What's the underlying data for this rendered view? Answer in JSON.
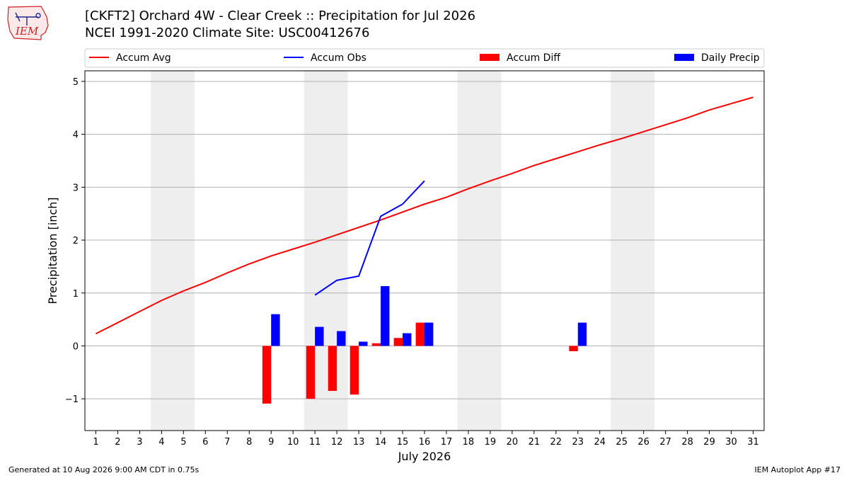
{
  "header": {
    "title": "[CKFT2] Orchard 4W - Clear Creek :: Precipitation for Jul 2026",
    "subtitle": "NCEI 1991-2020 Climate Site: USC00412676",
    "logo_text": "IEM"
  },
  "footer": {
    "generated": "Generated at 10 Aug 2026 9:00 AM CDT in 0.75s",
    "app": "IEM Autoplot App #17"
  },
  "colors": {
    "accum_avg": "#ff0000",
    "accum_obs": "#0000ff",
    "accum_diff": "#ff0000",
    "daily_precip": "#0000ff",
    "weekend_band": "#eeeeee",
    "grid": "#b0b0b0"
  },
  "chart_data": {
    "type": "bar",
    "title": "[CKFT2] Orchard 4W - Clear Creek :: Precipitation for Jul 2026",
    "xlabel": "July 2026",
    "ylabel": "Precipitation [inch]",
    "x": [
      1,
      2,
      3,
      4,
      5,
      6,
      7,
      8,
      9,
      10,
      11,
      12,
      13,
      14,
      15,
      16,
      17,
      18,
      19,
      20,
      21,
      22,
      23,
      24,
      25,
      26,
      27,
      28,
      29,
      30,
      31
    ],
    "xlim": [
      0.5,
      31.5
    ],
    "ylim": [
      -1.6,
      5.2
    ],
    "yticks": [
      -1,
      0,
      1,
      2,
      3,
      4,
      5
    ],
    "ytick_labels": [
      "−1",
      "0",
      "1",
      "2",
      "3",
      "4",
      "5"
    ],
    "grid": "horizontal",
    "legend": "top, horizontal",
    "weekend_bands": [
      [
        3.5,
        5.5
      ],
      [
        10.5,
        12.5
      ],
      [
        17.5,
        19.5
      ],
      [
        24.5,
        26.5
      ]
    ],
    "legend_entries": [
      "Accum Avg",
      "Accum Obs",
      "Accum Diff",
      "Daily Precip"
    ],
    "series": [
      {
        "name": "Accum Avg",
        "type": "line",
        "x": [
          1,
          2,
          3,
          4,
          5,
          6,
          7,
          8,
          9,
          10,
          11,
          12,
          13,
          14,
          15,
          16,
          17,
          18,
          19,
          20,
          21,
          22,
          23,
          24,
          25,
          26,
          27,
          28,
          29,
          30,
          31
        ],
        "values": [
          0.23,
          0.44,
          0.65,
          0.86,
          1.04,
          1.2,
          1.38,
          1.55,
          1.7,
          1.83,
          1.96,
          2.1,
          2.24,
          2.38,
          2.53,
          2.68,
          2.81,
          2.97,
          3.12,
          3.26,
          3.41,
          3.54,
          3.67,
          3.8,
          3.92,
          4.05,
          4.18,
          4.31,
          4.46,
          4.58,
          4.7
        ]
      },
      {
        "name": "Accum Obs",
        "type": "line",
        "x": [
          11,
          12,
          13,
          14,
          15,
          16
        ],
        "values": [
          0.96,
          1.24,
          1.32,
          2.45,
          2.68,
          3.12
        ]
      },
      {
        "name": "Accum Diff",
        "type": "bar",
        "x": [
          9,
          11,
          12,
          13,
          14,
          15,
          16,
          23
        ],
        "values": [
          -1.09,
          -1.0,
          -0.85,
          -0.92,
          0.05,
          0.15,
          0.44,
          -0.1
        ]
      },
      {
        "name": "Daily Precip",
        "type": "bar",
        "x": [
          9,
          11,
          12,
          13,
          14,
          15,
          16,
          23
        ],
        "values": [
          0.6,
          0.36,
          0.28,
          0.08,
          1.13,
          0.24,
          0.44,
          0.44
        ]
      }
    ]
  }
}
